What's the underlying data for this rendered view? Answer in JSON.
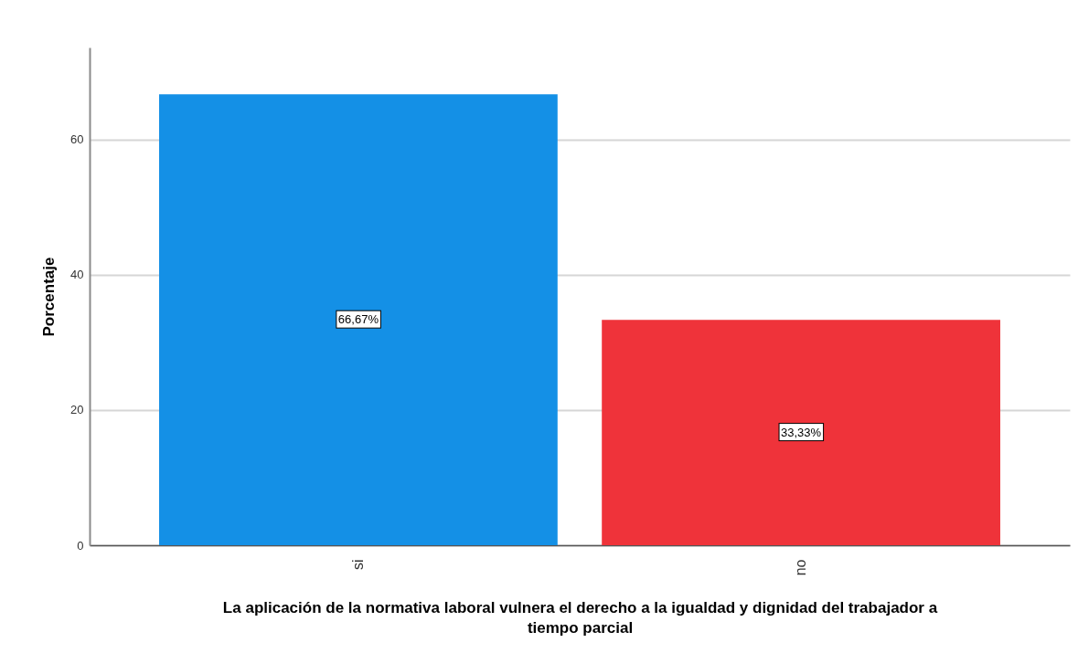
{
  "chart_data": {
    "type": "bar",
    "xlabel": "La aplicación de la normativa laboral vulnera el derecho a la igualdad y dignidad del trabajador a tiempo parcial",
    "ylabel": "Porcentaje",
    "categories": [
      "si",
      "no"
    ],
    "values": [
      66.67,
      33.33
    ],
    "colors": [
      "#1490e6",
      "#ef333a"
    ],
    "value_labels": [
      "66,67%",
      "33,33%"
    ],
    "ylim": [
      0,
      73.6
    ],
    "yticks": [
      0,
      20,
      40,
      60
    ],
    "grid": "y"
  }
}
